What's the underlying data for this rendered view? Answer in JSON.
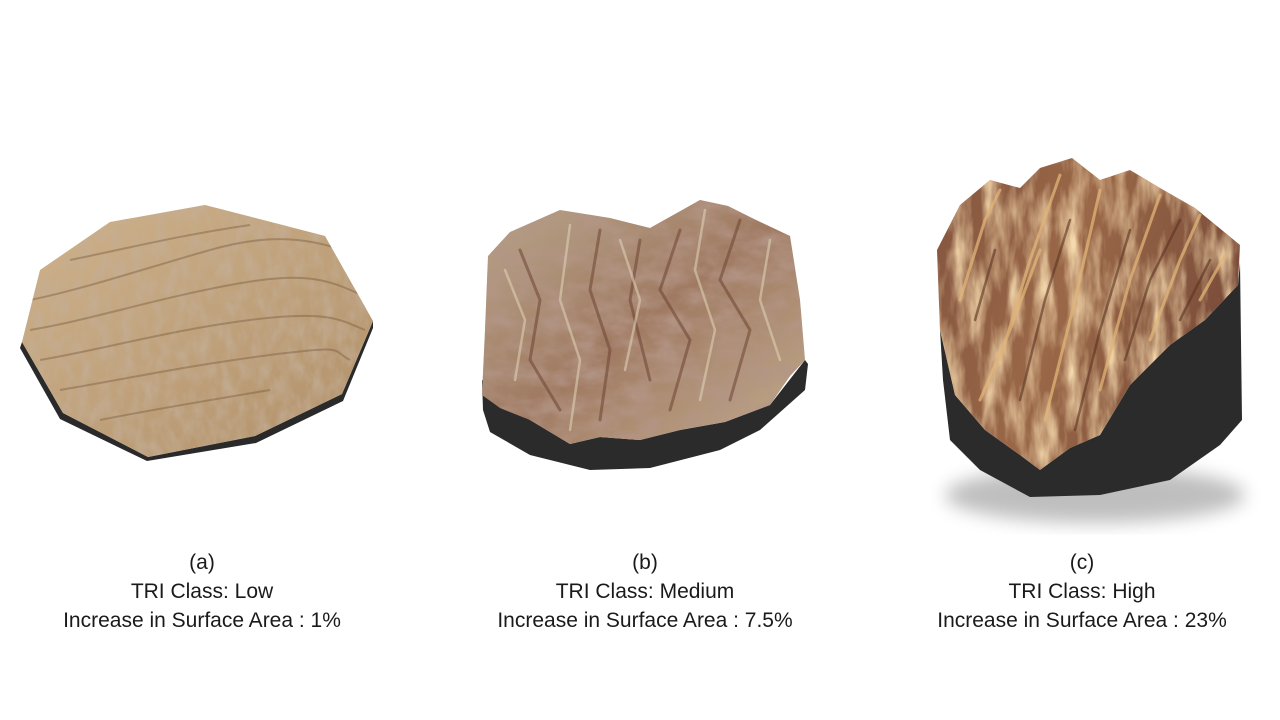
{
  "panels": [
    {
      "letter": "(a)",
      "tri_class": "TRI Class: Low",
      "surface_increase": "Increase in Surface Area : 1%",
      "colors": {
        "base": "#bfa07a",
        "light": "#d9bf98",
        "dark": "#8a6a48",
        "wall": "#2b2b2b"
      }
    },
    {
      "letter": "(b)",
      "tri_class": "TRI Class: Medium",
      "surface_increase": "Increase in Surface Area : 7.5%",
      "colors": {
        "base": "#a98a6c",
        "light": "#cfc0a0",
        "dark": "#7a5140",
        "wall": "#2b2b2b"
      }
    },
    {
      "letter": "(c)",
      "tri_class": "TRI Class: High",
      "surface_increase": "Increase in Surface Area : 23%",
      "colors": {
        "base": "#8e5e44",
        "light": "#d9a86a",
        "dark": "#5e3a2a",
        "wall": "#2b2b2b"
      }
    }
  ]
}
